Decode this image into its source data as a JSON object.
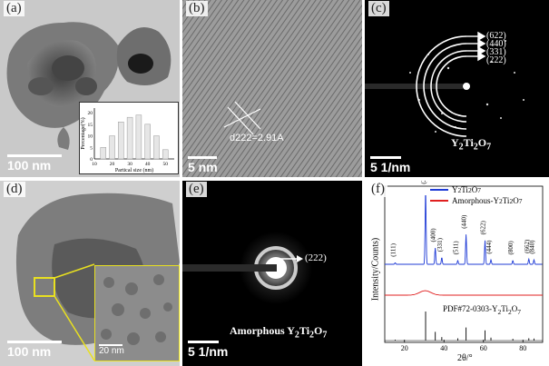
{
  "panels": {
    "a": {
      "label": "(a)",
      "scale_text": "100 nm",
      "inset": {
        "ylabel": "Percentage(%)",
        "xlabel": "Partical size (nm)",
        "y_ticks": [
          "0",
          "5",
          "10",
          "15",
          "20"
        ],
        "x_ticks": [
          "10",
          "20",
          "30",
          "40",
          "50"
        ]
      }
    },
    "b": {
      "label": "(b)",
      "scale_text": "5 nm",
      "annotation": "d222=2.91A"
    },
    "c": {
      "label": "(c)",
      "scale_text": "5 1/nm",
      "rings": [
        "(622)",
        "(440)",
        "(331)",
        "(222)"
      ],
      "title_main": "Y",
      "sub1": "2",
      "title_mid": "Ti",
      "sub2": "2",
      "title_end": "O",
      "sub3": "7"
    },
    "d": {
      "label": "(d)",
      "scale_text": "100 nm",
      "inset_scale_text": "20 nm"
    },
    "e": {
      "label": "(e)",
      "scale_text": "5 1/nm",
      "ring": "(222)",
      "title_pre": "Amorphous Y",
      "sub1": "2",
      "title_mid": "Ti",
      "sub2": "2",
      "title_end": "O",
      "sub3": "7"
    },
    "f": {
      "label": "(f)",
      "ylabel": "Intensity/Counts)",
      "xlabel": "2θ/°",
      "legend": [
        {
          "pre": "Y",
          "s1": "2",
          "mid": "Ti",
          "s2": "2",
          "end": "O",
          "s3": "7",
          "color": "#1f3bd6"
        },
        {
          "pre": "Amorphous-Y",
          "s1": "2",
          "mid": "Ti",
          "s2": "2",
          "end": "O",
          "s3": "7",
          "color": "#e02020"
        }
      ],
      "pdf_pre": "PDF#72-0303-Y",
      "pdf_s1": "2",
      "pdf_mid": "Ti",
      "pdf_s2": "2",
      "pdf_end": "O",
      "pdf_s3": "7",
      "peak_labels": [
        "(111)",
        "(222)",
        "(400)",
        "(331)",
        "(511)",
        "(440)",
        "(622)",
        "(444)",
        "(800)",
        "(662)",
        "(840)"
      ]
    }
  },
  "chart_data": [
    {
      "type": "bar",
      "title": "",
      "xlabel": "Partical size (nm)",
      "ylabel": "Percentage(%)",
      "categories": [
        15,
        20,
        25,
        30,
        35,
        40,
        45,
        50
      ],
      "values": [
        5,
        10,
        16,
        18,
        19,
        15,
        10,
        4
      ],
      "xlim": [
        10,
        55
      ],
      "ylim": [
        0,
        22
      ]
    },
    {
      "type": "line",
      "xlabel": "2θ/°",
      "ylabel": "Intensity/Counts)",
      "xlim": [
        10,
        90
      ],
      "x_ticks": [
        20,
        40,
        60,
        80
      ],
      "series": [
        {
          "name": "Y2Ti2O7",
          "color": "#1f3bd6",
          "peaks": [
            [
              15.3,
              2
            ],
            [
              30.7,
              100
            ],
            [
              35.6,
              22
            ],
            [
              38.9,
              9
            ],
            [
              47.0,
              5
            ],
            [
              51.2,
              40
            ],
            [
              60.8,
              32
            ],
            [
              63.8,
              6
            ],
            [
              74.9,
              5
            ],
            [
              83.0,
              7
            ],
            [
              85.6,
              6
            ]
          ]
        },
        {
          "name": "Amorphous-Y2Ti2O7",
          "color": "#e02020",
          "broad_peaks": [
            [
              30.5,
              6,
              4
            ]
          ]
        },
        {
          "name": "PDF#72-0303-Y2Ti2O7",
          "color": "#000000",
          "sticks": [
            [
              15.3,
              3
            ],
            [
              30.7,
              100
            ],
            [
              35.6,
              30
            ],
            [
              38.9,
              12
            ],
            [
              47.0,
              8
            ],
            [
              51.2,
              45
            ],
            [
              60.8,
              35
            ],
            [
              63.8,
              10
            ],
            [
              74.9,
              6
            ],
            [
              83.0,
              8
            ],
            [
              85.6,
              7
            ]
          ]
        }
      ]
    }
  ]
}
